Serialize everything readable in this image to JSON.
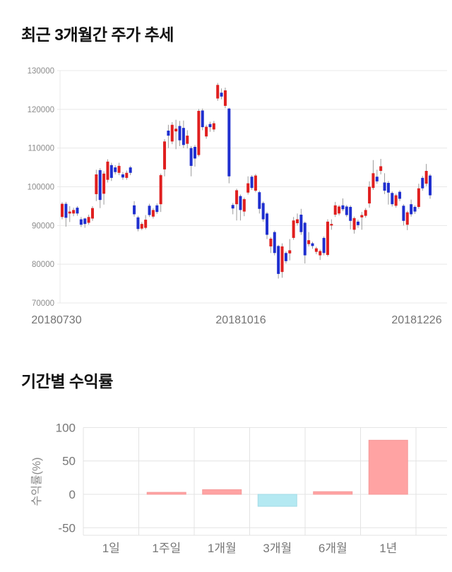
{
  "chart_data": [
    {
      "type": "candlestick",
      "title": "최근 3개월간 주가 추세",
      "x_tick_labels": [
        "20180730",
        "20181016",
        "20181226"
      ],
      "ylim": [
        70000,
        130000
      ],
      "y_ticks": [
        130000,
        120000,
        110000,
        100000,
        90000,
        80000,
        70000
      ],
      "grid": true,
      "legend": "none",
      "candle_columns": [
        "open",
        "high",
        "low",
        "close"
      ],
      "candles": [
        [
          92200,
          96000,
          91600,
          95600
        ],
        [
          95600,
          96100,
          89700,
          92000
        ],
        [
          93100,
          95000,
          90900,
          93600
        ],
        [
          93100,
          94600,
          92400,
          94000
        ],
        [
          94600,
          95000,
          92500,
          93100
        ],
        [
          91600,
          92200,
          89600,
          90200
        ],
        [
          91800,
          92000,
          89400,
          90400
        ],
        [
          90700,
          92800,
          90200,
          92200
        ],
        [
          91800,
          95000,
          91200,
          94500
        ],
        [
          98100,
          104400,
          96300,
          103200
        ],
        [
          104300,
          104800,
          94500,
          96600
        ],
        [
          98200,
          104000,
          95400,
          103400
        ],
        [
          101800,
          107100,
          101100,
          106500
        ],
        [
          105600,
          106200,
          101500,
          102300
        ],
        [
          105000,
          105600,
          103200,
          103800
        ],
        [
          103600,
          106200,
          103000,
          105400
        ],
        [
          103200,
          103800,
          101800,
          102400
        ],
        [
          102300,
          104200,
          101800,
          103600
        ],
        [
          105000,
          105400,
          103000,
          103600
        ],
        [
          95200,
          96300,
          92300,
          92900
        ],
        [
          92100,
          92500,
          88500,
          89100
        ],
        [
          89200,
          90900,
          88800,
          90400
        ],
        [
          89400,
          92700,
          89000,
          91500
        ],
        [
          95100,
          95600,
          92200,
          92700
        ],
        [
          92300,
          94500,
          91800,
          94000
        ],
        [
          95200,
          95700,
          93000,
          93500
        ],
        [
          95500,
          103400,
          93500,
          103000
        ],
        [
          104500,
          112300,
          102700,
          111700
        ],
        [
          114500,
          116000,
          110000,
          113200
        ],
        [
          111700,
          116700,
          111000,
          116000
        ],
        [
          114300,
          117300,
          109700,
          115000
        ],
        [
          115700,
          117000,
          110500,
          112000
        ],
        [
          115200,
          117100,
          110000,
          110800
        ],
        [
          111100,
          114600,
          109900,
          113200
        ],
        [
          110000,
          110500,
          102700,
          105400
        ],
        [
          110300,
          110800,
          105200,
          107300
        ],
        [
          108200,
          120100,
          107800,
          119600
        ],
        [
          119700,
          120200,
          114600,
          115400
        ],
        [
          113000,
          116000,
          112400,
          115500
        ],
        [
          116200,
          116800,
          114200,
          115400
        ],
        [
          114800,
          117000,
          114200,
          116400
        ],
        [
          122800,
          126800,
          122200,
          126300
        ],
        [
          124300,
          125400,
          122600,
          123300
        ],
        [
          120900,
          125600,
          120300,
          124900
        ],
        [
          120200,
          120400,
          100900,
          102700
        ],
        [
          95300,
          95800,
          92900,
          94400
        ],
        [
          95500,
          99500,
          91300,
          99100
        ],
        [
          97600,
          98000,
          91300,
          94000
        ],
        [
          93600,
          97200,
          92400,
          96800
        ],
        [
          98500,
          102700,
          98000,
          100900
        ],
        [
          102600,
          103000,
          99200,
          99700
        ],
        [
          99000,
          103300,
          98600,
          102900
        ],
        [
          98600,
          99000,
          93100,
          94300
        ],
        [
          95800,
          96200,
          91000,
          91600
        ],
        [
          93100,
          93500,
          86500,
          87600
        ],
        [
          84600,
          87000,
          82900,
          86600
        ],
        [
          88300,
          88700,
          82300,
          82900
        ],
        [
          84700,
          85000,
          76300,
          77500
        ],
        [
          78000,
          85400,
          76500,
          84600
        ],
        [
          82900,
          83300,
          80200,
          80800
        ],
        [
          82800,
          86500,
          81000,
          83600
        ],
        [
          86800,
          92200,
          86300,
          91300
        ],
        [
          90600,
          93100,
          90000,
          91600
        ],
        [
          92800,
          94300,
          87600,
          88300
        ],
        [
          90700,
          91000,
          80200,
          82300
        ],
        [
          85200,
          88300,
          84600,
          86200
        ],
        [
          85400,
          85800,
          84000,
          84700
        ],
        [
          83200,
          84500,
          82600,
          84100
        ],
        [
          82300,
          83800,
          81100,
          83400
        ],
        [
          86800,
          87200,
          82300,
          82900
        ],
        [
          82400,
          91600,
          82000,
          91000
        ],
        [
          90000,
          91600,
          88900,
          90400
        ],
        [
          92800,
          96100,
          92200,
          95200
        ],
        [
          93100,
          95300,
          92600,
          94900
        ],
        [
          95200,
          97000,
          93700,
          94200
        ],
        [
          94900,
          95300,
          92200,
          92700
        ],
        [
          94800,
          95200,
          89000,
          91200
        ],
        [
          88900,
          92300,
          87900,
          91900
        ],
        [
          91000,
          91500,
          89400,
          90100
        ],
        [
          92100,
          93500,
          88900,
          92700
        ],
        [
          92500,
          94500,
          92000,
          94000
        ],
        [
          95700,
          101400,
          94600,
          100000
        ],
        [
          99700,
          106900,
          99200,
          103500
        ],
        [
          102600,
          104400,
          100800,
          101400
        ],
        [
          104100,
          107200,
          103200,
          105300
        ],
        [
          101100,
          103500,
          98100,
          99000
        ],
        [
          101000,
          101500,
          95400,
          98500
        ],
        [
          98400,
          98800,
          94900,
          95500
        ],
        [
          95100,
          98200,
          94600,
          97800
        ],
        [
          98700,
          99100,
          96300,
          96900
        ],
        [
          95100,
          95500,
          90000,
          91200
        ],
        [
          90200,
          93800,
          88800,
          93400
        ],
        [
          95500,
          96700,
          92300,
          92900
        ],
        [
          94800,
          95200,
          93000,
          93600
        ],
        [
          94800,
          100800,
          94300,
          99600
        ],
        [
          102300,
          102800,
          99000,
          99600
        ],
        [
          100800,
          105900,
          100200,
          104100
        ],
        [
          102900,
          103300,
          96900,
          97800
        ]
      ],
      "style": {
        "up_color": "#e01f1f",
        "down_color": "#1f2fcf",
        "wick_color": "#9b9b9b",
        "grid_color": "#e8e8e8",
        "axis_text_color": "#8c8c8c",
        "date_text_color": "#737373"
      }
    },
    {
      "type": "bar",
      "title": "기간별 수익률",
      "ylabel": "수익률(%)",
      "categories": [
        "1일",
        "1주일",
        "1개월",
        "3개월",
        "6개월",
        "1년"
      ],
      "values": [
        0,
        3,
        7,
        -18,
        4,
        81
      ],
      "ylim": [
        -60,
        100
      ],
      "y_ticks": [
        100,
        50,
        0,
        -50
      ],
      "grid": true,
      "legend": "none",
      "style": {
        "positive_fill": "#ffa3a3",
        "positive_stroke": "#f59b9b",
        "negative_fill": "#b4e9f2",
        "negative_stroke": "#a3dbe6",
        "grid_color": "#e3e3e3",
        "axis_text_color": "#777777",
        "ylabel_color": "#888888"
      }
    }
  ]
}
